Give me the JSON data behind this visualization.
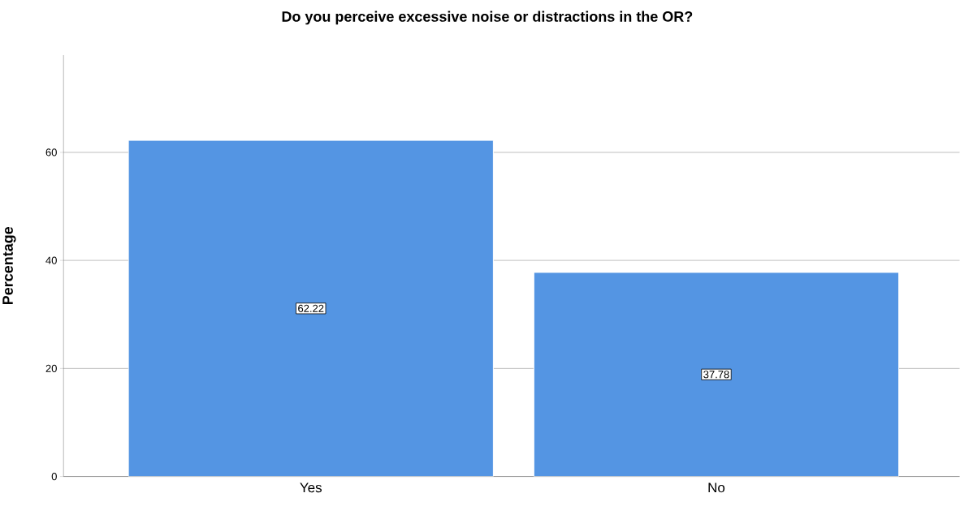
{
  "chart_data": {
    "type": "bar",
    "title": "Do you perceive excessive noise or distractions in the OR?",
    "ylabel": "Percentage",
    "categories": [
      "Yes",
      "No"
    ],
    "values": [
      62.22,
      37.78
    ],
    "color": "#5495e3",
    "ylim": [
      0,
      78
    ],
    "yticks": [
      0,
      20,
      40,
      60
    ],
    "grid": "y",
    "data_labels": true
  }
}
